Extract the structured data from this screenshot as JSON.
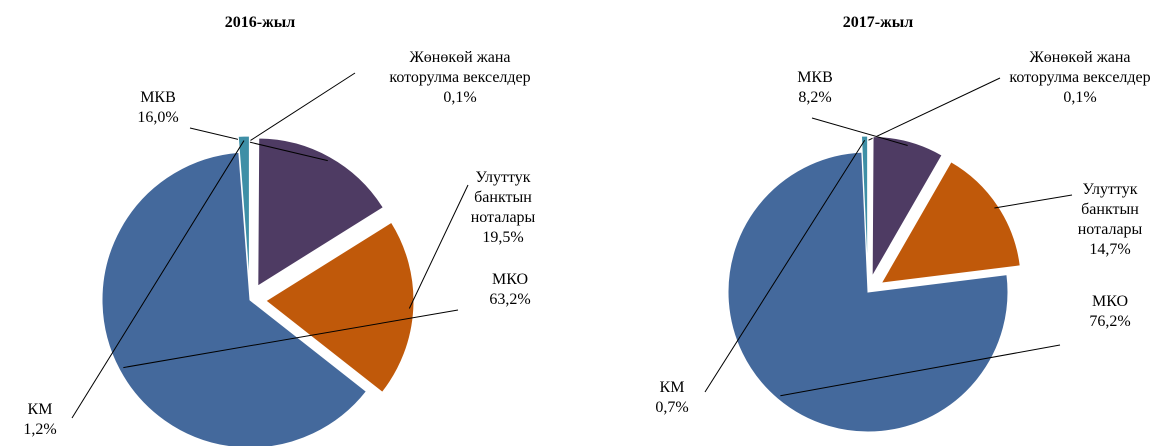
{
  "chart_data": [
    {
      "type": "pie",
      "title": "2016-жыл",
      "categories": [
        "Жөнөкөй жана которулма векселдер",
        "МКВ",
        "Улуттук банктын ноталары",
        "МКО",
        "КМ"
      ],
      "values": [
        0.1,
        16.0,
        19.5,
        63.2,
        1.2
      ],
      "value_labels": [
        "0,1%",
        "16,0%",
        "19,5%",
        "63,2%",
        "1,2%"
      ],
      "colors": [
        "#a9bfe0",
        "#4e3b63",
        "#c0590a",
        "#44699c",
        "#3e8fa6"
      ]
    },
    {
      "type": "pie",
      "title": "2017-жыл",
      "categories": [
        "Жөнөкөй жана которулма векселдер",
        "МКВ",
        "Улуттук банктын ноталары",
        "МКО",
        "КМ"
      ],
      "values": [
        0.1,
        8.2,
        14.7,
        76.2,
        0.7
      ],
      "value_labels": [
        "0,1%",
        "8,2%",
        "14,7%",
        "76,2%",
        "0,7%"
      ],
      "colors": [
        "#a9bfe0",
        "#4e3b63",
        "#c0590a",
        "#44699c",
        "#3e8fa6"
      ]
    }
  ]
}
